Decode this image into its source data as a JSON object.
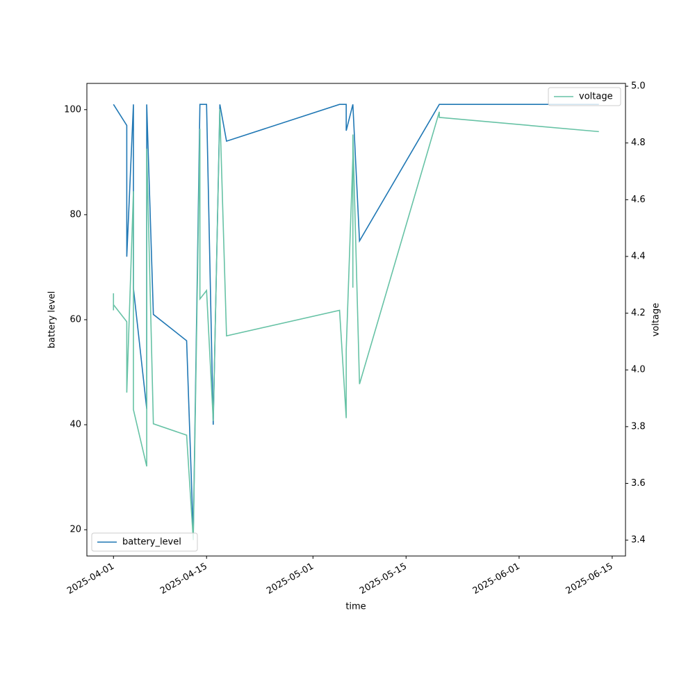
{
  "chart_data": {
    "type": "line",
    "xlabel": "time",
    "ylabel": "battery level",
    "y2label": "voltage",
    "x": [
      "2025-04-01",
      "2025-04-01",
      "2025-04-01",
      "2025-04-03",
      "2025-04-03",
      "2025-04-03",
      "2025-04-04",
      "2025-04-04",
      "2025-04-06",
      "2025-04-06",
      "2025-04-07",
      "2025-04-12",
      "2025-04-13",
      "2025-04-14",
      "2025-04-14",
      "2025-04-15",
      "2025-04-16",
      "2025-04-17",
      "2025-04-17",
      "2025-04-18",
      "2025-05-05",
      "2025-05-06",
      "2025-05-06",
      "2025-05-07",
      "2025-05-07",
      "2025-05-07",
      "2025-05-08",
      "2025-05-20",
      "2025-05-20",
      "2025-06-13"
    ],
    "series": [
      {
        "name": "battery_level",
        "color": "#1f77b4",
        "legend_loc": "lower left",
        "values": [
          101,
          101,
          101,
          97,
          83,
          72,
          101,
          66,
          43,
          101,
          61,
          56,
          19,
          101,
          101,
          101,
          40,
          101,
          101,
          94,
          101,
          101,
          96,
          101,
          101,
          101,
          75,
          101,
          101,
          101
        ]
      },
      {
        "name": "voltage",
        "color": "#66c2a5",
        "axis": "y2",
        "legend_loc": "upper right",
        "values": [
          4.21,
          4.27,
          4.23,
          4.17,
          4.02,
          3.92,
          4.63,
          3.86,
          3.66,
          4.78,
          3.81,
          3.77,
          3.4,
          4.85,
          4.25,
          4.28,
          3.82,
          4.92,
          4.91,
          4.12,
          4.21,
          3.83,
          4.07,
          4.75,
          4.29,
          4.83,
          3.95,
          4.91,
          4.89,
          4.84
        ]
      }
    ],
    "xlim": [
      "2025-03-28",
      "2025-06-17"
    ],
    "xticks": [
      "2025-04-01",
      "2025-04-15",
      "2025-05-01",
      "2025-05-15",
      "2025-06-01",
      "2025-06-15"
    ],
    "ylim": [
      15,
      105
    ],
    "yticks": [
      20,
      40,
      60,
      80,
      100
    ],
    "y2lim": [
      3.344,
      5.01
    ],
    "y2ticks": [
      3.4,
      3.6,
      3.8,
      {
        "value": 4.0,
        "label": "4.0"
      },
      4.2,
      4.4,
      4.6,
      4.8,
      {
        "value": 5.0,
        "label": "5.0"
      }
    ]
  }
}
